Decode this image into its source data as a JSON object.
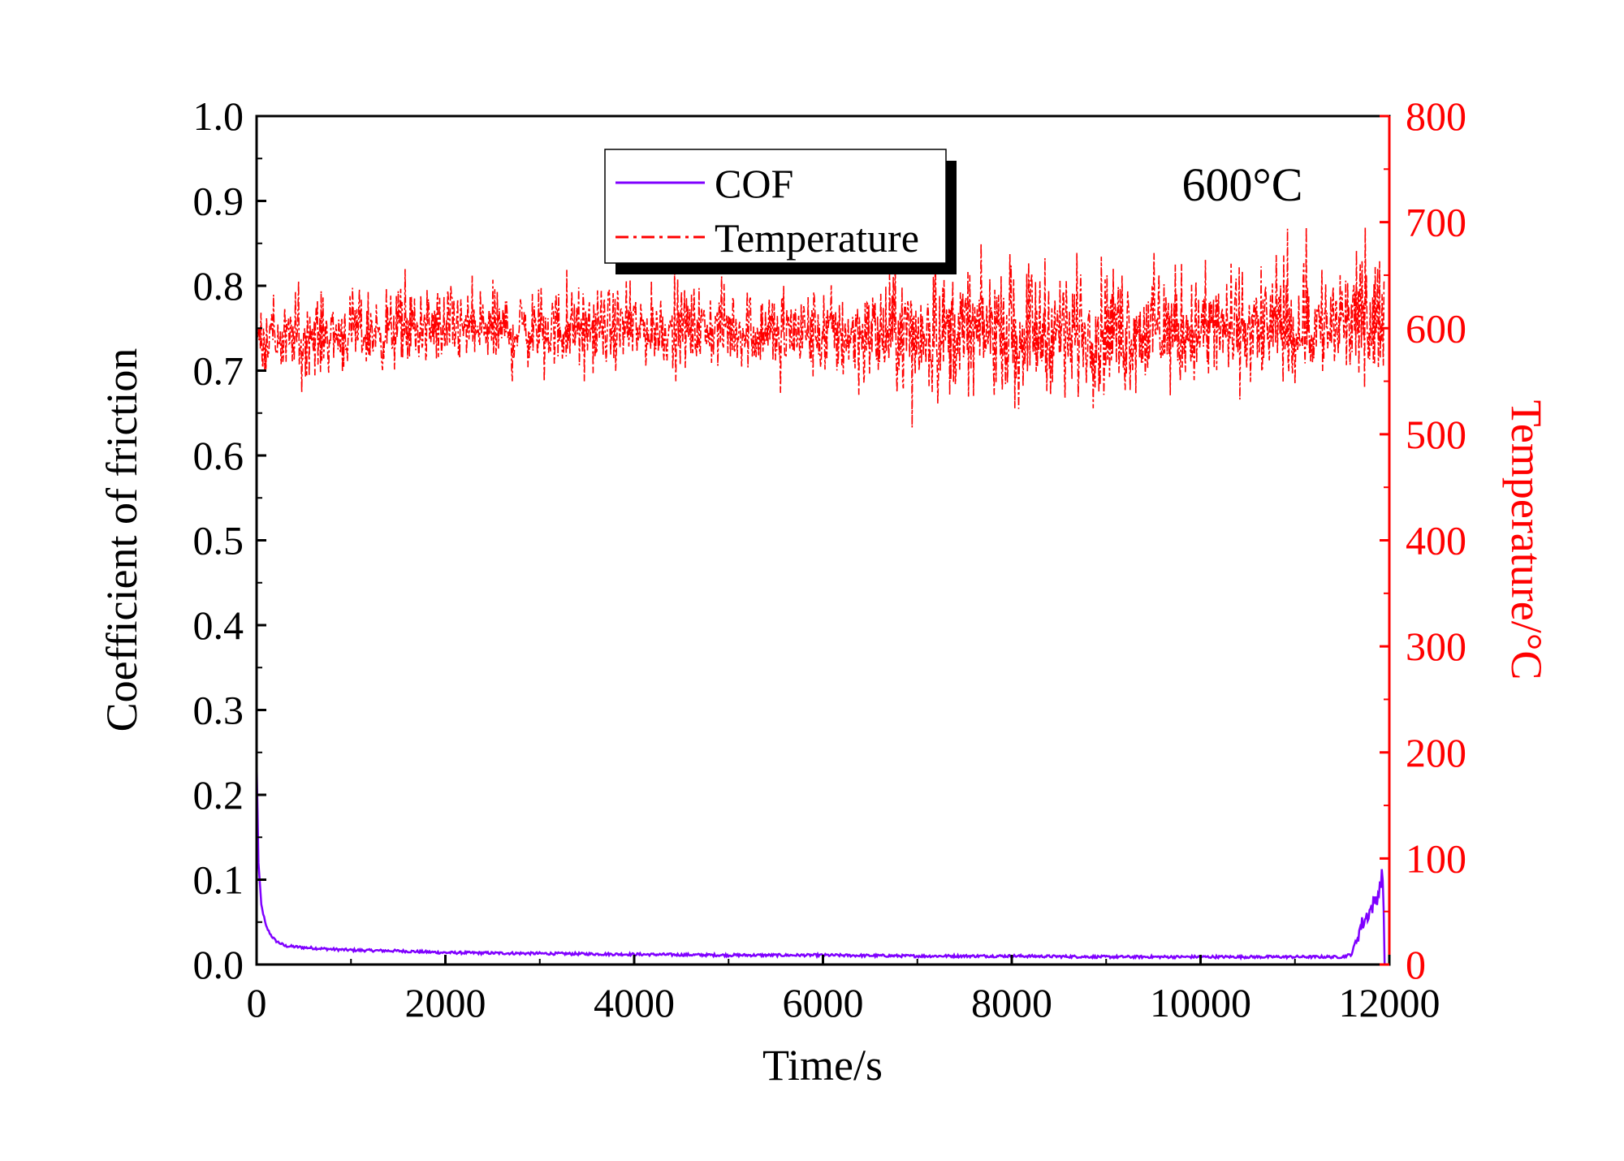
{
  "chart_data": {
    "type": "line",
    "annotation": "600°C",
    "xlabel": "Time/s",
    "ylabel": "Coefficient of friction",
    "y2label": "Temperature/°C",
    "xlim": [
      0,
      12000
    ],
    "ylim": [
      0,
      1.0
    ],
    "y2lim": [
      0,
      800
    ],
    "xticks": [
      "0",
      "2000",
      "4000",
      "6000",
      "8000",
      "10000",
      "12000"
    ],
    "yticks": [
      "0.0",
      "0.1",
      "0.2",
      "0.3",
      "0.4",
      "0.5",
      "0.6",
      "0.7",
      "0.8",
      "0.9",
      "1.0"
    ],
    "y2ticks": [
      "0",
      "100",
      "200",
      "300",
      "400",
      "500",
      "600",
      "700",
      "800"
    ],
    "grid": false,
    "legend_position": "top-center",
    "series": [
      {
        "name": "COF",
        "axis": "left",
        "color": "#7f00ff",
        "style": "solid",
        "x": [
          0,
          20,
          50,
          100,
          150,
          200,
          300,
          500,
          800,
          1000,
          1500,
          2000,
          3000,
          4000,
          5000,
          6000,
          7000,
          8000,
          9000,
          10000,
          11000,
          11500,
          11600,
          11650,
          11700,
          11750,
          11800,
          11850,
          11870,
          11900,
          11920,
          11940,
          11950
        ],
        "y": [
          0.24,
          0.12,
          0.07,
          0.045,
          0.035,
          0.028,
          0.022,
          0.02,
          0.018,
          0.017,
          0.016,
          0.014,
          0.013,
          0.012,
          0.011,
          0.011,
          0.01,
          0.01,
          0.009,
          0.009,
          0.009,
          0.009,
          0.012,
          0.03,
          0.045,
          0.055,
          0.065,
          0.075,
          0.08,
          0.09,
          0.11,
          0.07,
          0.0
        ]
      },
      {
        "name": "Temperature",
        "axis": "right",
        "color": "#ff0000",
        "style": "dash-dot",
        "x": [
          0,
          1000,
          2000,
          3000,
          4000,
          5000,
          6000,
          7000,
          8000,
          9000,
          10000,
          11000,
          11950
        ],
        "y": [
          590,
          595,
          598,
          597,
          598,
          597,
          596,
          596,
          595,
          596,
          597,
          596,
          600
        ],
        "range_min": [
          535,
          545,
          550,
          550,
          550,
          550,
          530,
          505,
          525,
          510,
          525,
          530,
          540
        ],
        "range_max": [
          640,
          650,
          660,
          655,
          655,
          660,
          655,
          670,
          695,
          690,
          680,
          695,
          695
        ]
      }
    ]
  },
  "legend": {
    "items": [
      {
        "label": "COF",
        "color": "#7f00ff",
        "style": "solid"
      },
      {
        "label": "Temperature",
        "color": "#ff0000",
        "style": "dash-dot"
      }
    ]
  }
}
